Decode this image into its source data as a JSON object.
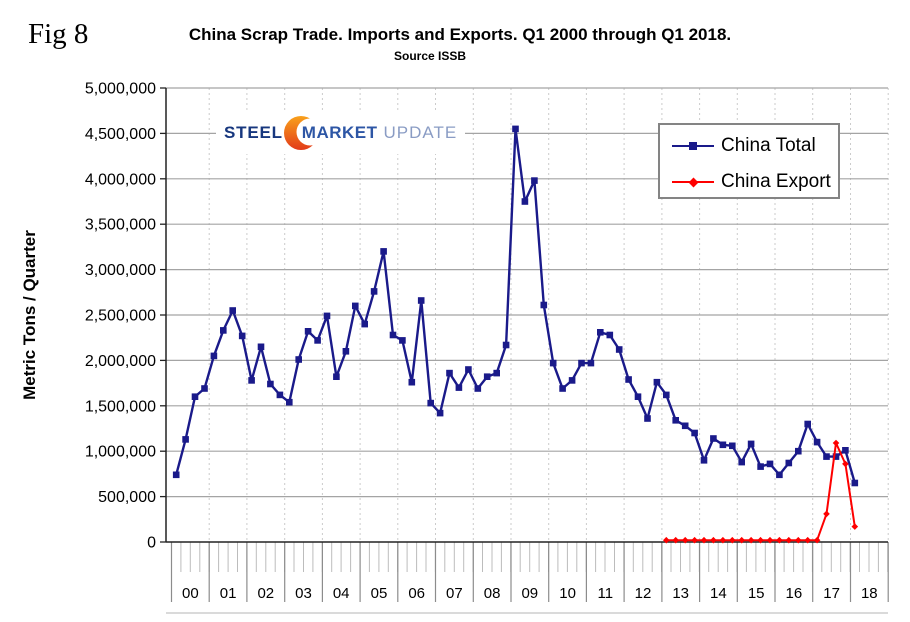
{
  "figure": {
    "fig_label": "Fig 8",
    "title": "China Scrap Trade. Imports and Exports. Q1 2000 through Q1 2018.",
    "subtitle": "Source ISSB"
  },
  "logo": {
    "part1": "STEEL",
    "part2": "MARKET",
    "part3": "UPDATE",
    "colors": {
      "steel": "#17377e",
      "market": "#2d56a5",
      "update": "#8a9cc4",
      "crescent_top": "#f9a11b",
      "crescent_bottom": "#e23a1a"
    }
  },
  "chart_data": {
    "type": "line",
    "title": "China Scrap Trade. Imports and Exports. Q1 2000 through Q1 2018.",
    "subtitle": "Source ISSB",
    "ylabel": "Metric Tons / Quarter",
    "ylim": [
      0,
      5000000
    ],
    "y_tick_step": 500000,
    "y_tick_labels": [
      "0",
      "500,000",
      "1,000,000",
      "1,500,000",
      "2,000,000",
      "2,500,000",
      "3,000,000",
      "3,500,000",
      "4,000,000",
      "4,500,000",
      "5,000,000"
    ],
    "x_year_labels": [
      "00",
      "01",
      "02",
      "03",
      "04",
      "05",
      "06",
      "07",
      "08",
      "09",
      "10",
      "11",
      "12",
      "13",
      "14",
      "15",
      "16",
      "17",
      "18"
    ],
    "frequency": "quarterly",
    "x_start": "2000-Q1",
    "x_end": "2018-Q1",
    "grid": {
      "horizontal": true,
      "vertical_dashed_per_year": true
    },
    "legend": {
      "position": "top-right"
    },
    "series": [
      {
        "name": "China Total",
        "color": "#1a1a8a",
        "marker": "square",
        "start_index": 0,
        "start_quarter": "2000-Q1",
        "values": [
          740000,
          1130000,
          1600000,
          1690000,
          2050000,
          2330000,
          2550000,
          2270000,
          1780000,
          2150000,
          1740000,
          1620000,
          1540000,
          2010000,
          2320000,
          2220000,
          2490000,
          1820000,
          2100000,
          2600000,
          2400000,
          2760000,
          3200000,
          2280000,
          2220000,
          1760000,
          2660000,
          1530000,
          1420000,
          1860000,
          1700000,
          1900000,
          1690000,
          1820000,
          1860000,
          2170000,
          4550000,
          3750000,
          3980000,
          2610000,
          1970000,
          1690000,
          1780000,
          1970000,
          1970000,
          2310000,
          2280000,
          2120000,
          1790000,
          1600000,
          1360000,
          1760000,
          1620000,
          1340000,
          1280000,
          1200000,
          900000,
          1140000,
          1070000,
          1060000,
          880000,
          1080000,
          830000,
          860000,
          740000,
          870000,
          1000000,
          1300000,
          1100000,
          940000,
          940000,
          1010000,
          650000
        ]
      },
      {
        "name": "China Export",
        "color": "#fe0000",
        "marker": "diamond",
        "start_index": 52,
        "start_quarter": "2013-Q1",
        "values": [
          20000,
          20000,
          20000,
          20000,
          20000,
          20000,
          20000,
          20000,
          20000,
          20000,
          20000,
          20000,
          20000,
          20000,
          20000,
          20000,
          20000,
          310000,
          1090000,
          860000,
          170000
        ]
      }
    ]
  }
}
